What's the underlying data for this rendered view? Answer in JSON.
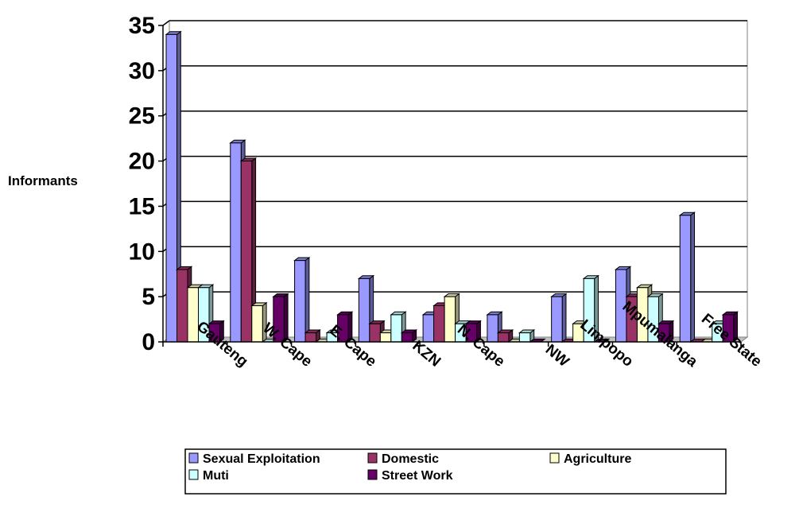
{
  "chart_data": {
    "type": "bar",
    "title": "",
    "xlabel": "",
    "ylabel": "Informants",
    "ylim": [
      0,
      35
    ],
    "yticks": [
      "0",
      "5",
      "10",
      "15",
      "20",
      "25",
      "30",
      "35"
    ],
    "grid": "horizontal",
    "legend_position": "bottom",
    "style": "3d-clustered-bar",
    "categories": [
      "Gauteng",
      "W. Cape",
      "E. Cape",
      "KZN",
      "N. Cape",
      "NW",
      "Limpopo",
      "Mpumalanga",
      "Free State"
    ],
    "series": [
      {
        "name": "Sexual Exploitation",
        "color": "#9999ff",
        "values": [
          34,
          22,
          9,
          7,
          3,
          3,
          5,
          8,
          14
        ]
      },
      {
        "name": "Domestic",
        "color": "#993366",
        "values": [
          8,
          20,
          1,
          2,
          4,
          1,
          0,
          5,
          0
        ]
      },
      {
        "name": "Agriculture",
        "color": "#ffffcc",
        "values": [
          6,
          4,
          0,
          1,
          5,
          0,
          2,
          6,
          0
        ]
      },
      {
        "name": "Muti",
        "color": "#ccffff",
        "values": [
          6,
          0,
          1,
          3,
          2,
          1,
          7,
          5,
          2
        ]
      },
      {
        "name": "Street Work",
        "color": "#660066",
        "values": [
          2,
          5,
          3,
          1,
          2,
          0,
          0,
          2,
          3
        ]
      }
    ]
  }
}
